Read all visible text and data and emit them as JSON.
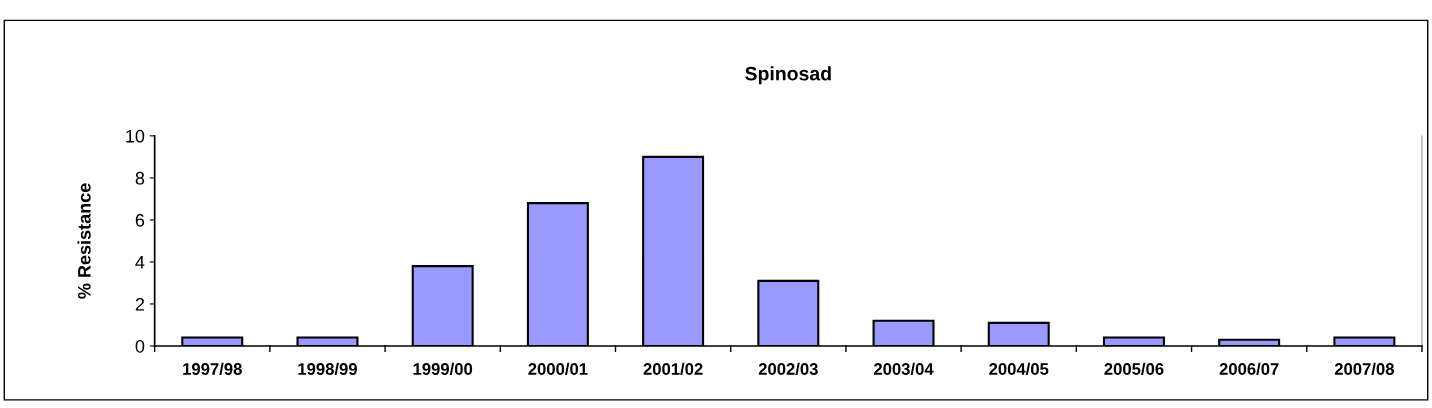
{
  "chart_data": {
    "type": "bar",
    "title": "Spinosad",
    "ylabel": "% Resistance",
    "categories": [
      "1997/98",
      "1998/99",
      "1999/00",
      "2000/01",
      "2001/02",
      "2002/03",
      "2003/04",
      "2004/05",
      "2005/06",
      "2006/07",
      "2007/08"
    ],
    "values": [
      0.4,
      0.4,
      3.8,
      6.8,
      9.0,
      3.1,
      1.2,
      1.1,
      0.4,
      0.3,
      0.4
    ],
    "color": "#9999ff",
    "ylim": [
      0,
      10
    ],
    "yticks": [
      0,
      2,
      4,
      6,
      8,
      10
    ],
    "grid": false,
    "legend": false
  }
}
